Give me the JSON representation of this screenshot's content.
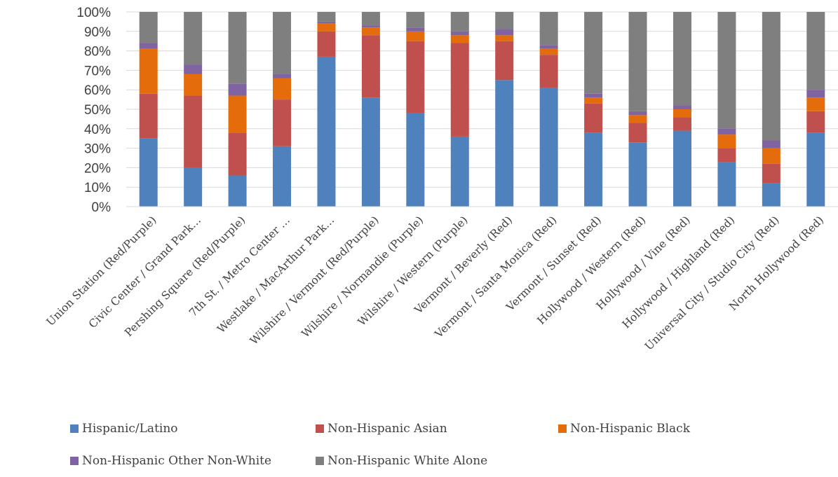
{
  "chart_data": {
    "type": "bar",
    "stacked": true,
    "ylim": [
      0,
      100
    ],
    "ytick_labels": [
      "0%",
      "10%",
      "20%",
      "30%",
      "40%",
      "50%",
      "60%",
      "70%",
      "80%",
      "90%",
      "100%"
    ],
    "grid": true,
    "legend_position": "bottom",
    "categories": [
      "Union Station (Red/Purple)",
      "Civic Center / Grand Park…",
      "Pershing Square (Red/Purple)",
      "7th St. / Metro Center …",
      "Westlake / MacArthur Park…",
      "Wilshire / Vermont (Red/Purple)",
      "Wilshire / Normandie (Purple)",
      "Wilshire / Western (Purple)",
      "Vermont / Beverly (Red)",
      "Vermont / Santa Monica (Red)",
      "Vermont / Sunset (Red)",
      "Hollywood / Western (Red)",
      "Hollywood / Vine (Red)",
      "Hollywood / Highland (Red)",
      "Universal City / Studio City (Red)",
      "North Hollywood (Red)"
    ],
    "series": [
      {
        "name": "Hispanic/Latino",
        "color": "#4f81bd",
        "values": [
          35,
          20,
          16,
          31,
          77,
          56,
          48,
          36,
          65,
          61,
          38,
          33,
          39,
          23,
          12,
          38
        ]
      },
      {
        "name": "Non-Hispanic Asian",
        "color": "#c0504d",
        "values": [
          23,
          37,
          22,
          24,
          13,
          32,
          37,
          48,
          20,
          17,
          15,
          10,
          7,
          7,
          10,
          11
        ]
      },
      {
        "name": "Non-Hispanic Black",
        "color": "#e46c0a",
        "values": [
          23,
          11,
          19,
          11,
          4,
          4,
          5,
          4,
          3,
          3,
          3,
          4,
          4,
          7,
          8,
          7
        ]
      },
      {
        "name": "Non-Hispanic Other Non-White",
        "color": "#8064a2",
        "values": [
          3,
          5,
          6,
          2,
          1,
          1,
          2,
          2,
          3,
          2,
          2,
          2,
          2,
          3,
          4,
          4
        ]
      },
      {
        "name": "Non-Hispanic White Alone",
        "color": "#7f7f7f",
        "values": [
          16,
          27,
          37,
          32,
          5,
          7,
          8,
          10,
          9,
          17,
          42,
          51,
          48,
          60,
          66,
          40
        ]
      }
    ]
  }
}
